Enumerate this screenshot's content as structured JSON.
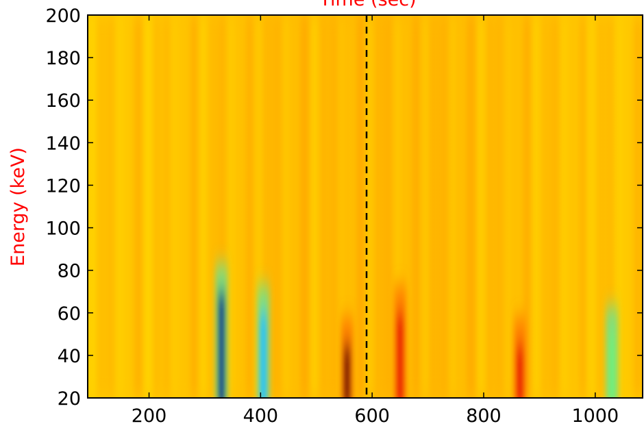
{
  "chart_data": {
    "type": "heatmap",
    "title": "",
    "xlabel": "Time (sec)",
    "ylabel": "Energy (keV)",
    "xlim": [
      90,
      1085
    ],
    "ylim": [
      20,
      200
    ],
    "xticks": [
      200,
      400,
      600,
      800,
      1000
    ],
    "yticks": [
      20,
      40,
      60,
      80,
      100,
      120,
      140,
      160,
      180,
      200
    ],
    "colormap": "jet",
    "grid": false,
    "legend": "none",
    "vertical_marker": {
      "x": 590,
      "style": "dashed",
      "color": "#000000"
    },
    "label_color": "#ff0000",
    "notable_features": [
      {
        "x": 330,
        "energy_range": [
          20,
          70
        ],
        "level": "lowest",
        "color": "dark-blue"
      },
      {
        "x": 405,
        "energy_range": [
          20,
          60
        ],
        "level": "low",
        "color": "cyan"
      },
      {
        "x": 555,
        "energy_range": [
          20,
          45
        ],
        "level": "highest",
        "color": "dark-red"
      },
      {
        "x": 650,
        "energy_range": [
          20,
          60
        ],
        "level": "high",
        "color": "red"
      },
      {
        "x": 865,
        "energy_range": [
          20,
          45
        ],
        "level": "high",
        "color": "red"
      },
      {
        "x": 1030,
        "energy_range": [
          20,
          50
        ],
        "level": "low",
        "color": "green"
      }
    ]
  }
}
